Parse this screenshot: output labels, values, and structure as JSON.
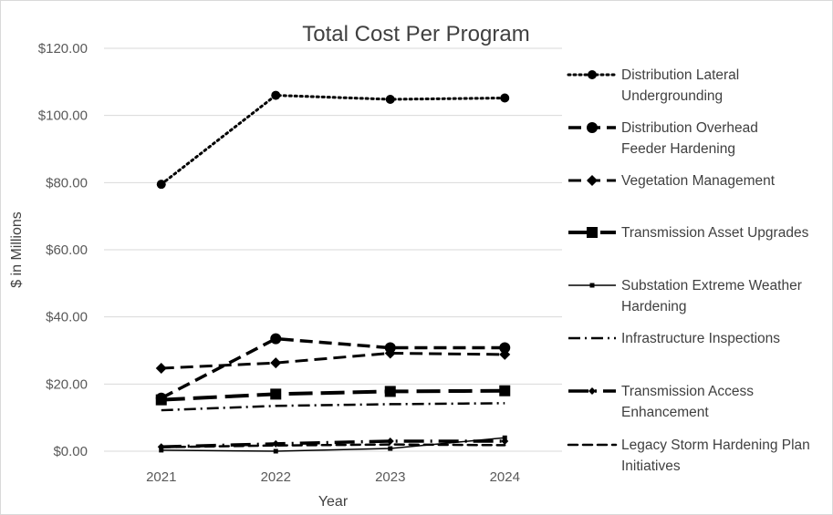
{
  "chart_data": {
    "type": "line",
    "title": "Total Cost Per Program",
    "xlabel": "Year",
    "ylabel": "$ in Millions",
    "x": [
      "2021",
      "2022",
      "2023",
      "2024"
    ],
    "ylim": [
      0,
      120
    ],
    "yticks": [
      0,
      20,
      40,
      60,
      80,
      100,
      120
    ],
    "ytick_labels": [
      "$0.00",
      "$20.00",
      "$40.00",
      "$60.00",
      "$80.00",
      "$100.00",
      "$120.00"
    ],
    "grid": true,
    "legend_position": "right",
    "series": [
      {
        "name": "Distribution Lateral Undergrounding",
        "values": [
          79.5,
          106.0,
          104.8,
          105.2
        ]
      },
      {
        "name": "Distribution Overhead Feeder Hardening",
        "values": [
          15.8,
          33.5,
          30.8,
          30.8
        ]
      },
      {
        "name": "Vegetation Management",
        "values": [
          24.7,
          26.3,
          29.2,
          28.8
        ]
      },
      {
        "name": "Transmission Asset Upgrades",
        "values": [
          15.3,
          17.0,
          17.8,
          18.0
        ]
      },
      {
        "name": "Substation Extreme Weather Hardening",
        "values": [
          0.3,
          0.0,
          0.8,
          4.0
        ]
      },
      {
        "name": "Infrastructure Inspections",
        "values": [
          12.2,
          13.5,
          14.0,
          14.3
        ]
      },
      {
        "name": "Transmission Access Enhancement",
        "values": [
          1.3,
          2.2,
          3.0,
          3.0
        ]
      },
      {
        "name": "Legacy Storm Hardening Plan Initiatives",
        "values": [
          1.2,
          1.7,
          2.0,
          1.8
        ]
      }
    ]
  }
}
